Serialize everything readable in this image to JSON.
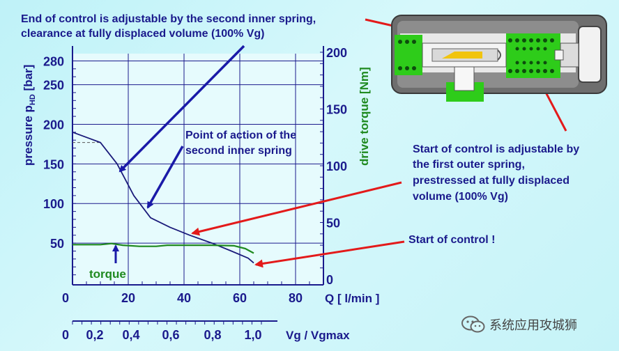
{
  "chart_data": {
    "type": "line",
    "x_axis": {
      "label": "Q [ l/min ]",
      "ticks": [
        "0",
        "20",
        "40",
        "60",
        "80"
      ],
      "range": [
        0,
        90
      ]
    },
    "x2_axis": {
      "label": "Vg / Vgmax",
      "ticks": [
        "0",
        "0,2",
        "0,4",
        "0,6",
        "0,8",
        "1,0"
      ]
    },
    "y_left": {
      "label_main": "pressure p",
      "label_sub": "HD",
      "label_unit": " [bar]",
      "ticks": [
        50,
        100,
        150,
        200,
        250,
        280
      ],
      "range": [
        0,
        280
      ]
    },
    "y_right": {
      "label": "drive torque [Nm]",
      "ticks": [
        0,
        50,
        100,
        150,
        200
      ],
      "range": [
        0,
        200
      ]
    },
    "series": [
      {
        "name": "pressure",
        "color": "#1a1a7a",
        "x": [
          0,
          10,
          16,
          22,
          28,
          35,
          42,
          50,
          57,
          63,
          65
        ],
        "y": [
          190,
          177,
          150,
          110,
          82,
          70,
          60,
          50,
          40,
          31,
          25
        ]
      },
      {
        "name": "torque",
        "color": "#1f8a1f",
        "x": [
          0,
          10,
          14,
          18,
          24,
          30,
          34,
          40,
          50,
          58,
          62,
          65
        ],
        "y": [
          30.5,
          30.5,
          31.5,
          30,
          29,
          29,
          30,
          30,
          30,
          29.5,
          27,
          23
        ]
      }
    ],
    "reference_line": {
      "style": "dashed",
      "x": [
        0,
        10
      ],
      "y": [
        177,
        177
      ]
    },
    "series_label": "torque"
  },
  "annotations": {
    "top_line1": "End of control is adjustable by the second inner spring,",
    "top_line2": "clearance at fully displaced volume (100% Vg)",
    "mid_line1": "Point of action of the",
    "mid_line2": "second inner spring",
    "right_line1": "Start of control is adjustable by",
    "right_line2": "the first outer spring,",
    "right_line3": "prestressed at fully displaced",
    "right_line4": "volume (100% Vg)",
    "start": "Start of control !"
  },
  "watermark": "系统应用攻城狮",
  "colors": {
    "axis": "#1a1a8c",
    "grid": "#1a1a8c",
    "torque": "#1f8a1f",
    "arrow_blue": "#1a1aa8",
    "arrow_red": "#e31a1a"
  }
}
